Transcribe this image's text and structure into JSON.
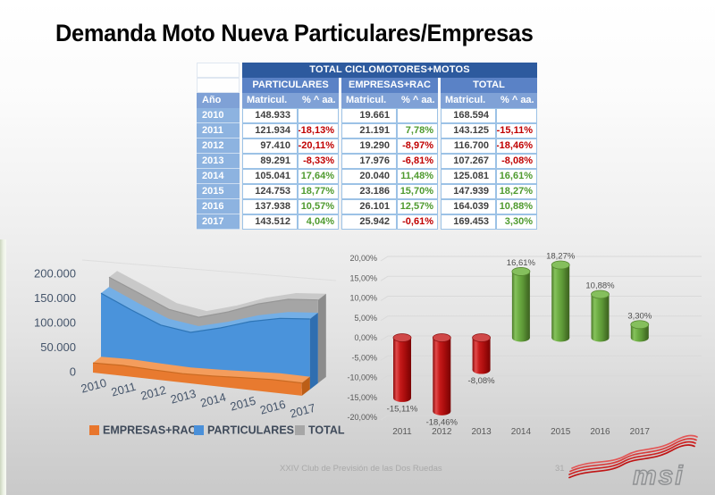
{
  "slide": {
    "title": "Demanda Moto Nueva Particulares/Empresas",
    "footer": {
      "caption": "XXIV Club de Previsión de las Dos Ruedas",
      "page_number": "31"
    },
    "logo_text": "msi"
  },
  "table": {
    "title": "TOTAL CICLOMOTORES+MOTOS",
    "year_header": "Año",
    "groups": [
      {
        "label": "PARTICULARES"
      },
      {
        "label": "EMPRESAS+RAC"
      },
      {
        "label": "TOTAL"
      }
    ],
    "sub_headers": {
      "matricul": "Matricul.",
      "pct": "% ^ aa."
    },
    "rows": [
      {
        "year": "2010",
        "cells": [
          "148.933",
          "",
          "19.661",
          "",
          "168.594",
          ""
        ]
      },
      {
        "year": "2011",
        "cells": [
          "121.934",
          "-18,13%",
          "21.191",
          "7,78%",
          "143.125",
          "-15,11%"
        ]
      },
      {
        "year": "2012",
        "cells": [
          "97.410",
          "-20,11%",
          "19.290",
          "-8,97%",
          "116.700",
          "-18,46%"
        ]
      },
      {
        "year": "2013",
        "cells": [
          "89.291",
          "-8,33%",
          "17.976",
          "-6,81%",
          "107.267",
          "-8,08%"
        ]
      },
      {
        "year": "2014",
        "cells": [
          "105.041",
          "17,64%",
          "20.040",
          "11,48%",
          "125.081",
          "16,61%"
        ]
      },
      {
        "year": "2015",
        "cells": [
          "124.753",
          "18,77%",
          "23.186",
          "15,70%",
          "147.939",
          "18,27%"
        ]
      },
      {
        "year": "2016",
        "cells": [
          "137.938",
          "10,57%",
          "26.101",
          "12,57%",
          "164.039",
          "10,88%"
        ]
      },
      {
        "year": "2017",
        "cells": [
          "143.512",
          "4,04%",
          "25.942",
          "-0,61%",
          "169.453",
          "3,30%"
        ]
      }
    ],
    "colors": {
      "header_dark": "#2D5A9E",
      "header_mid": "#5A82C6",
      "header_light": "#7FA1D6",
      "year_cell": "#8DB3E0",
      "grid_border": "#9CC2E6",
      "positive": "#4E9A2E",
      "negative": "#C00000",
      "number_text": "#404040"
    }
  },
  "chart_data": [
    {
      "type": "area",
      "style": "3d",
      "categories": [
        "2010",
        "2011",
        "2012",
        "2013",
        "2014",
        "2015",
        "2016",
        "2017"
      ],
      "series": [
        {
          "name": "EMPRESAS+RAC",
          "color": "#E8762D",
          "values": [
            19661,
            21191,
            19290,
            17976,
            20040,
            23186,
            26101,
            25942
          ]
        },
        {
          "name": "PARTICULARES",
          "color": "#4A90D9",
          "values": [
            148933,
            121934,
            97410,
            89291,
            105041,
            124753,
            137938,
            143512
          ]
        },
        {
          "name": "TOTAL",
          "color": "#A6A6A6",
          "values": [
            168594,
            143125,
            116700,
            107267,
            125081,
            147939,
            164039,
            169453
          ]
        }
      ],
      "ylim": [
        0,
        200000
      ],
      "ytick_labels": [
        "200.000",
        "150.000",
        "100.000",
        "50.000",
        "0"
      ],
      "legend_position": "bottom",
      "grid": false
    },
    {
      "type": "bar",
      "style": "3d-cylinder",
      "categories": [
        "2011",
        "2012",
        "2013",
        "2014",
        "2015",
        "2016",
        "2017"
      ],
      "values": [
        -15.11,
        -18.46,
        -8.08,
        16.61,
        18.27,
        10.88,
        3.3
      ],
      "labels": [
        "-15,11%",
        "-18,46%",
        "-8,08%",
        "16,61%",
        "18,27%",
        "10,88%",
        "3,30%"
      ],
      "ylim": [
        -20,
        20
      ],
      "ytick_labels": [
        "20,00%",
        "15,00%",
        "10,00%",
        "5,00%",
        "0,00%",
        "-5,00%",
        "-10,00%",
        "-15,00%",
        "-20,00%"
      ],
      "positive_color": "#6FAC47",
      "negative_color": "#C00000",
      "label_color": "#4F4F4F",
      "axis_color": "#595959",
      "grid": true
    }
  ]
}
